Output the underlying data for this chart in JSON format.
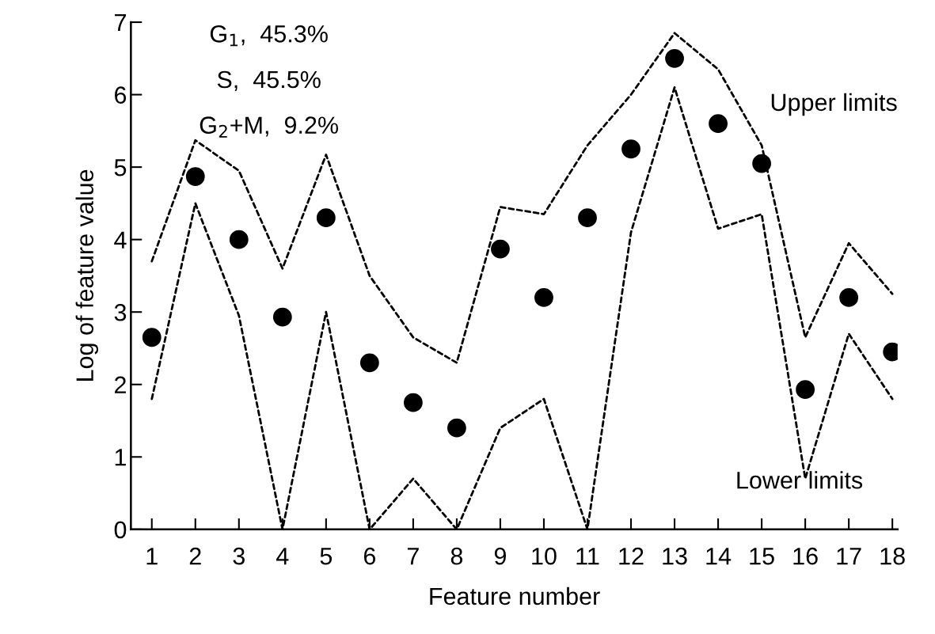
{
  "chart_data": {
    "type": "scatter",
    "xlabel": "Feature number",
    "ylabel": "Log of feature value",
    "categories": [
      "1",
      "2",
      "3",
      "4",
      "5",
      "6",
      "7",
      "8",
      "9",
      "10",
      "11",
      "12",
      "13",
      "14",
      "15",
      "16",
      "17",
      "18"
    ],
    "series": [
      {
        "type": "line",
        "color": "#000000",
        "line_style": "dashed",
        "values": [
          3.7,
          5.37,
          4.95,
          3.6,
          5.17,
          3.5,
          2.65,
          2.3,
          4.45,
          4.35,
          5.3,
          6.0,
          6.85,
          6.35,
          5.3,
          2.65,
          3.95,
          3.25
        ]
      },
      {
        "type": "line",
        "color": "#000000",
        "line_style": "dashed",
        "values": [
          1.8,
          4.5,
          2.95,
          0,
          3.0,
          0,
          0.7,
          0,
          1.4,
          1.8,
          0,
          4.1,
          6.1,
          4.15,
          4.35,
          0.7,
          2.7,
          1.8
        ]
      },
      {
        "color": "#000000",
        "marker": "circle",
        "values": [
          2.65,
          4.87,
          4.0,
          2.93,
          4.3,
          2.3,
          1.75,
          1.4,
          3.87,
          3.2,
          4.3,
          5.25,
          6.5,
          5.6,
          5.05,
          1.93,
          3.2,
          2.45
        ]
      }
    ],
    "ylim": [
      0,
      7
    ],
    "yticks": [
      0,
      1,
      2,
      3,
      4,
      5,
      6,
      7
    ],
    "grid": false,
    "legend": false,
    "annotations": [
      "G$_{1}$,  45.3%",
      "S,  45.5%",
      "G$_{2}$+M,  9.2%",
      "Upper limits",
      "Lower limits"
    ]
  }
}
